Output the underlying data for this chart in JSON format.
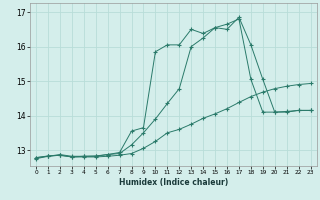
{
  "xlabel": "Humidex (Indice chaleur)",
  "bg_color": "#d4eeeb",
  "grid_color": "#b8ddd8",
  "line_color": "#2a7a6a",
  "xlim": [
    -0.5,
    23.5
  ],
  "ylim": [
    12.55,
    17.25
  ],
  "yticks": [
    13,
    14,
    15,
    16,
    17
  ],
  "xticks": [
    0,
    1,
    2,
    3,
    4,
    5,
    6,
    7,
    8,
    9,
    10,
    11,
    12,
    13,
    14,
    15,
    16,
    17,
    18,
    19,
    20,
    21,
    22,
    23
  ],
  "series1_x": [
    0,
    1,
    2,
    3,
    4,
    5,
    6,
    7,
    8,
    9,
    10,
    11,
    12,
    13,
    14,
    15,
    16,
    17,
    18,
    19,
    20,
    21,
    22,
    23
  ],
  "series1_y": [
    12.75,
    12.82,
    12.85,
    12.8,
    12.8,
    12.8,
    12.82,
    12.85,
    12.9,
    13.05,
    13.25,
    13.5,
    13.6,
    13.75,
    13.92,
    14.05,
    14.2,
    14.38,
    14.55,
    14.68,
    14.78,
    14.85,
    14.9,
    14.93
  ],
  "series2_x": [
    0,
    1,
    2,
    3,
    4,
    5,
    6,
    7,
    8,
    9,
    10,
    11,
    12,
    13,
    14,
    15,
    16,
    17,
    18,
    19,
    20,
    21,
    22,
    23
  ],
  "series2_y": [
    12.78,
    12.83,
    12.85,
    12.8,
    12.82,
    12.83,
    12.87,
    12.9,
    13.15,
    13.5,
    13.9,
    14.35,
    14.78,
    16.0,
    16.25,
    16.55,
    16.65,
    16.8,
    15.05,
    14.1,
    14.1,
    14.12,
    14.15,
    14.15
  ],
  "series3_x": [
    0,
    1,
    2,
    3,
    4,
    5,
    6,
    7,
    8,
    9,
    10,
    11,
    12,
    13,
    14,
    15,
    16,
    17,
    18,
    19,
    20,
    21,
    22,
    23
  ],
  "series3_y": [
    12.78,
    12.82,
    12.87,
    12.82,
    12.82,
    12.82,
    12.87,
    12.93,
    13.55,
    13.65,
    15.85,
    16.05,
    16.05,
    16.5,
    16.38,
    16.55,
    16.5,
    16.85,
    16.05,
    15.05,
    14.1,
    14.1,
    14.15,
    14.15
  ]
}
